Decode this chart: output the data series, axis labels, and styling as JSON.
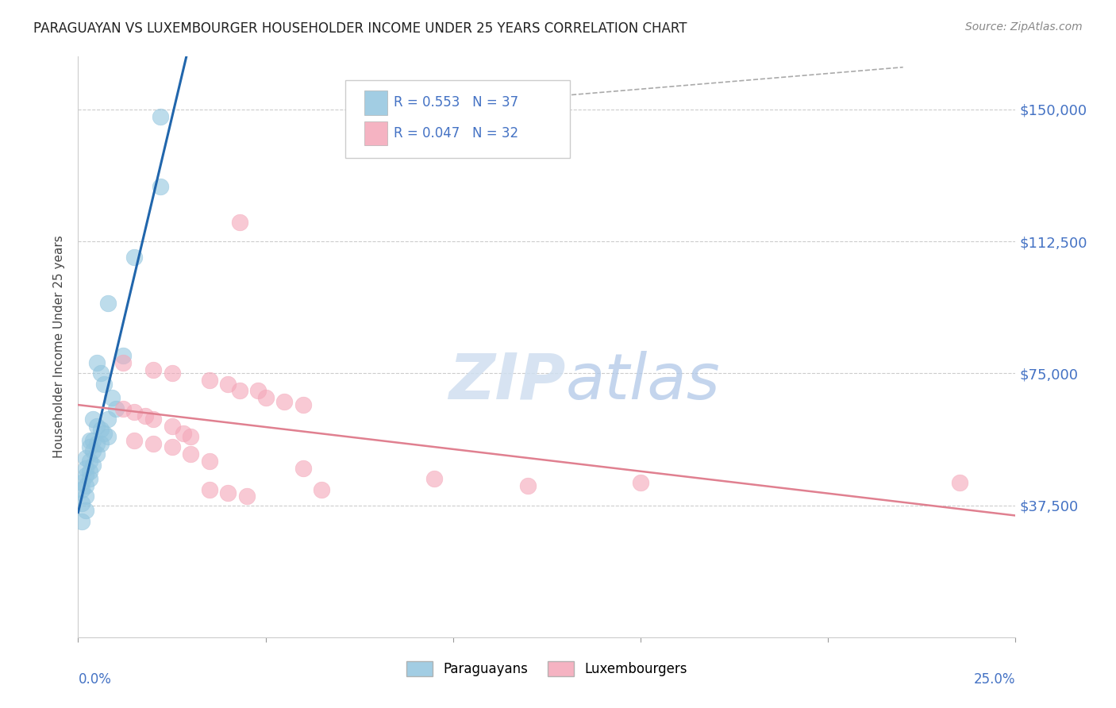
{
  "title": "PARAGUAYAN VS LUXEMBOURGER HOUSEHOLDER INCOME UNDER 25 YEARS CORRELATION CHART",
  "source": "Source: ZipAtlas.com",
  "ylabel": "Householder Income Under 25 years",
  "ytick_labels": [
    "$37,500",
    "$75,000",
    "$112,500",
    "$150,000"
  ],
  "ytick_values": [
    37500,
    75000,
    112500,
    150000
  ],
  "xlim": [
    0.0,
    0.25
  ],
  "ylim": [
    0,
    165000
  ],
  "blue_color": "#92c5de",
  "pink_color": "#f4a6b8",
  "blue_line_color": "#2166ac",
  "pink_line_color": "#e08090",
  "legend_r1": "R = 0.553",
  "legend_n1": "N = 37",
  "legend_r2": "R = 0.047",
  "legend_n2": "N = 32",
  "par_x": [
    0.022,
    0.022,
    0.015,
    0.008,
    0.012,
    0.005,
    0.006,
    0.007,
    0.009,
    0.01,
    0.008,
    0.004,
    0.005,
    0.006,
    0.007,
    0.008,
    0.003,
    0.004,
    0.005,
    0.006,
    0.003,
    0.004,
    0.005,
    0.002,
    0.003,
    0.004,
    0.002,
    0.003,
    0.002,
    0.003,
    0.001,
    0.002,
    0.001,
    0.002,
    0.001,
    0.002,
    0.001
  ],
  "par_y": [
    148000,
    128000,
    108000,
    95000,
    80000,
    78000,
    75000,
    72000,
    68000,
    65000,
    62000,
    62000,
    60000,
    59000,
    58000,
    57000,
    56000,
    56000,
    55000,
    55000,
    54000,
    53000,
    52000,
    51000,
    50000,
    49000,
    48000,
    47000,
    46000,
    45000,
    44000,
    43000,
    42000,
    40000,
    38000,
    36000,
    33000
  ],
  "lux_x": [
    0.043,
    0.012,
    0.02,
    0.025,
    0.035,
    0.04,
    0.043,
    0.048,
    0.05,
    0.055,
    0.06,
    0.012,
    0.015,
    0.018,
    0.02,
    0.025,
    0.028,
    0.03,
    0.015,
    0.02,
    0.025,
    0.03,
    0.035,
    0.06,
    0.095,
    0.15,
    0.235,
    0.12,
    0.065,
    0.035,
    0.04,
    0.045
  ],
  "lux_y": [
    118000,
    78000,
    76000,
    75000,
    73000,
    72000,
    70000,
    70000,
    68000,
    67000,
    66000,
    65000,
    64000,
    63000,
    62000,
    60000,
    58000,
    57000,
    56000,
    55000,
    54000,
    52000,
    50000,
    48000,
    45000,
    44000,
    44000,
    43000,
    42000,
    42000,
    41000,
    40000
  ]
}
